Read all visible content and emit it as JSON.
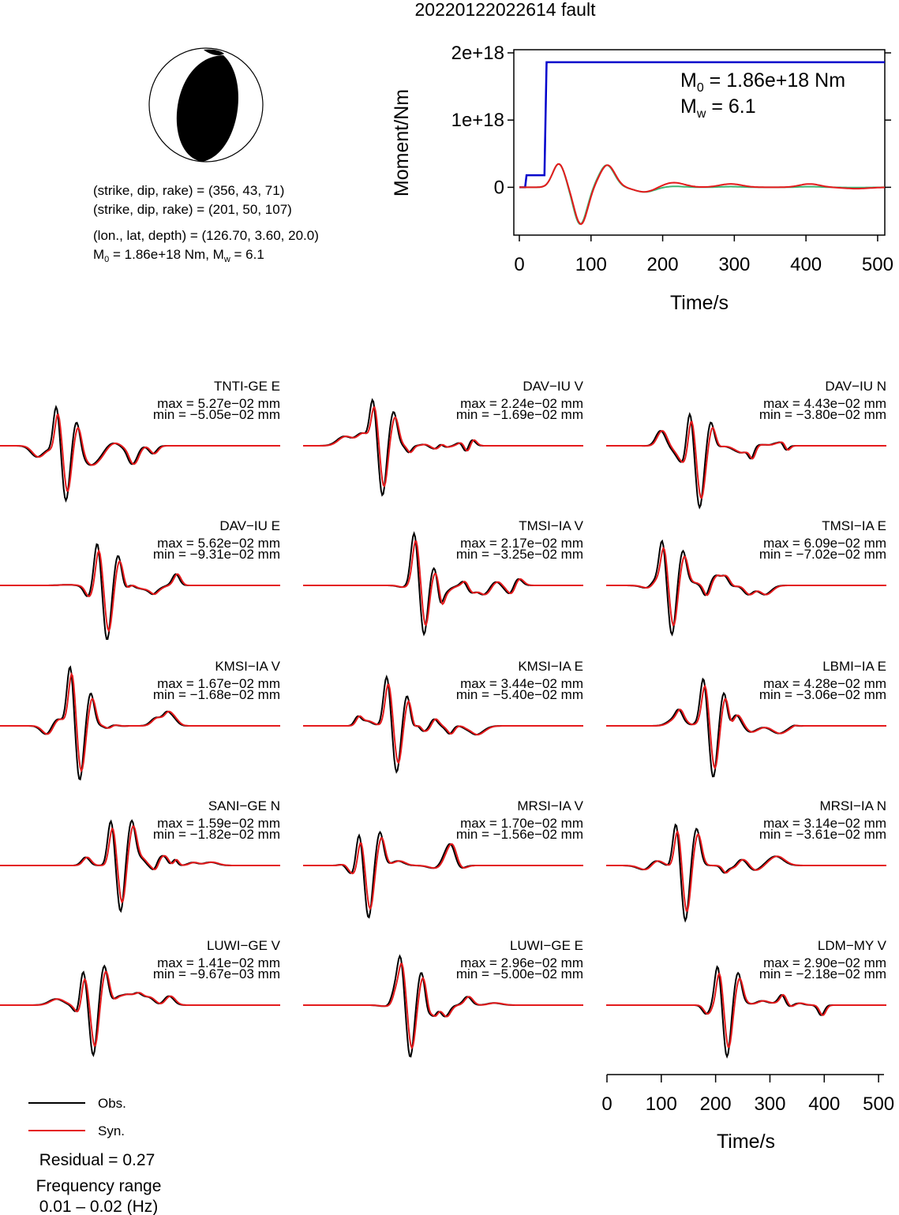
{
  "title": "20220122022614 fault",
  "mechanism": {
    "plane1": "(strike, dip, rake) = (356, 43, 71)",
    "plane2": "(strike, dip, rake) = (201, 50, 107)",
    "location": "(lon., lat, depth) = (126.70, 3.60, 20.0)",
    "moment_prefix": "M",
    "moment_sub": "0",
    "moment_rest": " = 1.86e+18 Nm, M",
    "mw_sub": "w",
    "mw_rest": " = 6.1"
  },
  "stf_panel": {
    "ylabel": "Moment/Nm",
    "xlabel": "Time/s",
    "yticks": [
      "2e+18",
      "1e+18",
      "0"
    ],
    "xticks": [
      "0",
      "100",
      "200",
      "300",
      "400",
      "500"
    ],
    "m0_prefix": "M",
    "m0_sub": "0",
    "m0_rest": " = 1.86e+18 Nm",
    "mw_prefix": "M",
    "mw_sub": "w",
    "mw_rest": " = 6.1"
  },
  "wave_axis": {
    "xlabel": "Time/s",
    "xticks": [
      "0",
      "100",
      "200",
      "300",
      "400",
      "500"
    ]
  },
  "legend": {
    "obs": "Obs.",
    "syn": "Syn."
  },
  "residual": "Residual = 0.27",
  "freq_title": "Frequency range",
  "freq_value": "0.01 – 0.02 (Hz)",
  "colors": {
    "obs": "#000000",
    "syn": "#e41a1c",
    "stf": "#0000cc",
    "stf_obs": "#3cb371",
    "beach": "#000000"
  },
  "stations": [
    {
      "label": "TNTI-GE E",
      "max": "max = 5.27e−02 mm",
      "min": "min = −5.05e−02 mm"
    },
    {
      "label": "DAV−IU V",
      "max": "max = 2.24e−02 mm",
      "min": "min = −1.69e−02 mm"
    },
    {
      "label": "DAV−IU N",
      "max": "max = 4.43e−02 mm",
      "min": "min = −3.80e−02 mm"
    },
    {
      "label": "DAV−IU E",
      "max": "max = 5.62e−02 mm",
      "min": "min = −9.31e−02 mm"
    },
    {
      "label": "TMSI−IA V",
      "max": "max = 2.17e−02 mm",
      "min": "min = −3.25e−02 mm"
    },
    {
      "label": "TMSI−IA E",
      "max": "max = 6.09e−02 mm",
      "min": "min = −7.02e−02 mm"
    },
    {
      "label": "KMSI−IA V",
      "max": "max = 1.67e−02 mm",
      "min": "min = −1.68e−02 mm"
    },
    {
      "label": "KMSI−IA E",
      "max": "max = 3.44e−02 mm",
      "min": "min = −5.40e−02 mm"
    },
    {
      "label": "LBMI−IA E",
      "max": "max = 4.28e−02 mm",
      "min": "min = −3.06e−02 mm"
    },
    {
      "label": "SANI−GE N",
      "max": "max = 1.59e−02 mm",
      "min": "min = −1.82e−02 mm"
    },
    {
      "label": "MRSI−IA V",
      "max": "max = 1.70e−02 mm",
      "min": "min = −1.56e−02 mm"
    },
    {
      "label": "MRSI−IA N",
      "max": "max = 3.14e−02 mm",
      "min": "min = −3.61e−02 mm"
    },
    {
      "label": "LUWI−GE V",
      "max": "max = 1.41e−02 mm",
      "min": "min = −9.67e−03 mm"
    },
    {
      "label": "LUWI−GE E",
      "max": "max = 2.96e−02 mm",
      "min": "min = −5.00e−02 mm"
    },
    {
      "label": "LDM−MY V",
      "max": "max = 2.90e−02 mm",
      "min": "min = −2.18e−02 mm"
    }
  ],
  "chart_data": [
    {
      "type": "line",
      "title": "20220122022614 fault",
      "xlabel": "Time/s",
      "ylabel": "Moment/Nm",
      "xlim": [
        0,
        510
      ],
      "ylim": [
        -5e+17,
        2e+18
      ],
      "series": [
        {
          "x": [
            0,
            8,
            10,
            30,
            35,
            38,
            510
          ],
          "values": [
            0,
            0,
            1.8e+17,
            1.8e+17,
            1.8e+17,
            1.86e+18,
            1.86e+18
          ]
        }
      ]
    },
    {
      "type": "line",
      "xlabel": "Time/s",
      "xlim": [
        0,
        510
      ],
      "series": [
        {
          "name": "Obs."
        },
        {
          "name": "Syn."
        }
      ]
    }
  ]
}
